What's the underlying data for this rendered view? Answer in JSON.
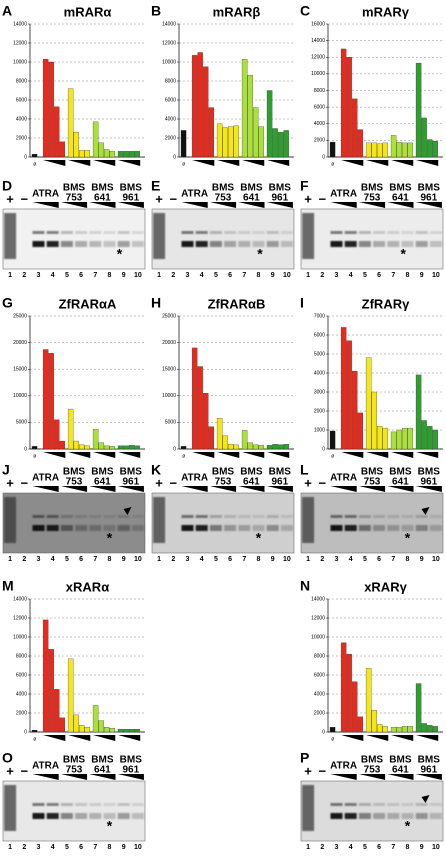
{
  "chart_data": [
    {
      "type": "bar",
      "panel": "A",
      "title": "mRARα",
      "control_label": "ø",
      "ylim": [
        0,
        14000
      ],
      "yticks": [
        0,
        2000,
        4000,
        6000,
        8000,
        10000,
        12000,
        14000
      ],
      "grid": true,
      "values": [
        300,
        10300,
        10000,
        5300,
        1600,
        7200,
        2600,
        700,
        700,
        3700,
        1500,
        800,
        600,
        600,
        600,
        600,
        600
      ],
      "colors": [
        "#111111",
        "#e8291c",
        "#e8291c",
        "#e8291c",
        "#e8291c",
        "#f5e616",
        "#f5e616",
        "#f5e616",
        "#f5e616",
        "#a9e03a",
        "#a9e03a",
        "#a9e03a",
        "#a9e03a",
        "#2e9e2e",
        "#2e9e2e",
        "#2e9e2e",
        "#2e9e2e"
      ]
    },
    {
      "type": "bar",
      "panel": "B",
      "title": "mRARβ",
      "control_label": "ø",
      "ylim": [
        0,
        14000
      ],
      "yticks": [
        0,
        2000,
        4000,
        6000,
        8000,
        10000,
        12000,
        14000
      ],
      "grid": true,
      "values": [
        2800,
        10700,
        11000,
        9500,
        5200,
        3500,
        3100,
        3200,
        3300,
        10300,
        8600,
        5200,
        3200,
        7000,
        3000,
        2600,
        2800
      ],
      "colors": [
        "#111111",
        "#e8291c",
        "#e8291c",
        "#e8291c",
        "#e8291c",
        "#f5e616",
        "#f5e616",
        "#f5e616",
        "#f5e616",
        "#a9e03a",
        "#a9e03a",
        "#a9e03a",
        "#a9e03a",
        "#2e9e2e",
        "#2e9e2e",
        "#2e9e2e",
        "#2e9e2e"
      ]
    },
    {
      "type": "bar",
      "panel": "C",
      "title": "mRARγ",
      "control_label": "ø",
      "ylim": [
        0,
        16000
      ],
      "yticks": [
        0,
        2000,
        4000,
        6000,
        8000,
        10000,
        12000,
        14000,
        16000
      ],
      "grid": true,
      "values": [
        1800,
        13000,
        12000,
        7000,
        3300,
        1700,
        1700,
        1600,
        1700,
        2600,
        1800,
        1700,
        1700,
        11300,
        4700,
        2100,
        1900
      ],
      "colors": [
        "#111111",
        "#e8291c",
        "#e8291c",
        "#e8291c",
        "#e8291c",
        "#f5e616",
        "#f5e616",
        "#f5e616",
        "#f5e616",
        "#a9e03a",
        "#a9e03a",
        "#a9e03a",
        "#a9e03a",
        "#2e9e2e",
        "#2e9e2e",
        "#2e9e2e",
        "#2e9e2e"
      ]
    },
    {
      "type": "bar",
      "panel": "G",
      "title": "ZfRARαA",
      "control_label": "ø",
      "ylim": [
        0,
        25000
      ],
      "yticks": [
        0,
        5000,
        10000,
        15000,
        20000,
        25000
      ],
      "grid": true,
      "values": [
        500,
        18700,
        18000,
        5500,
        1500,
        7500,
        1500,
        800,
        600,
        3700,
        1200,
        600,
        500,
        600,
        600,
        700,
        600
      ],
      "colors": [
        "#111111",
        "#e8291c",
        "#e8291c",
        "#e8291c",
        "#e8291c",
        "#f5e616",
        "#f5e616",
        "#f5e616",
        "#f5e616",
        "#a9e03a",
        "#a9e03a",
        "#a9e03a",
        "#a9e03a",
        "#2e9e2e",
        "#2e9e2e",
        "#2e9e2e",
        "#2e9e2e"
      ]
    },
    {
      "type": "bar",
      "panel": "H",
      "title": "ZfRARαB",
      "control_label": "ø",
      "ylim": [
        0,
        25000
      ],
      "yticks": [
        0,
        5000,
        10000,
        15000,
        20000,
        25000
      ],
      "grid": true,
      "values": [
        500,
        19000,
        15500,
        10500,
        4200,
        5800,
        2500,
        900,
        800,
        3500,
        1200,
        800,
        700,
        700,
        900,
        800,
        900
      ],
      "colors": [
        "#111111",
        "#e8291c",
        "#e8291c",
        "#e8291c",
        "#e8291c",
        "#f5e616",
        "#f5e616",
        "#f5e616",
        "#f5e616",
        "#a9e03a",
        "#a9e03a",
        "#a9e03a",
        "#a9e03a",
        "#2e9e2e",
        "#2e9e2e",
        "#2e9e2e",
        "#2e9e2e"
      ]
    },
    {
      "type": "bar",
      "panel": "I",
      "title": "ZfRARγ",
      "control_label": "ø",
      "ylim": [
        0,
        7000
      ],
      "yticks": [
        0,
        1000,
        2000,
        3000,
        4000,
        5000,
        6000,
        7000
      ],
      "grid": true,
      "values": [
        950,
        6400,
        5700,
        4100,
        1900,
        4800,
        3000,
        1200,
        1100,
        900,
        1000,
        1100,
        1100,
        3900,
        1500,
        1200,
        1000
      ],
      "colors": [
        "#111111",
        "#e8291c",
        "#e8291c",
        "#e8291c",
        "#e8291c",
        "#f5e616",
        "#f5e616",
        "#f5e616",
        "#f5e616",
        "#a9e03a",
        "#a9e03a",
        "#a9e03a",
        "#a9e03a",
        "#2e9e2e",
        "#2e9e2e",
        "#2e9e2e",
        "#2e9e2e"
      ]
    },
    {
      "type": "bar",
      "panel": "M",
      "title": "xRARα",
      "control_label": "ø",
      "ylim": [
        0,
        14000
      ],
      "yticks": [
        0,
        2000,
        4000,
        6000,
        8000,
        10000,
        12000,
        14000
      ],
      "grid": true,
      "values": [
        200,
        11800,
        8700,
        4500,
        1500,
        7700,
        1800,
        700,
        500,
        2800,
        1200,
        500,
        400,
        300,
        300,
        300,
        300
      ],
      "colors": [
        "#111111",
        "#e8291c",
        "#e8291c",
        "#e8291c",
        "#e8291c",
        "#f5e616",
        "#f5e616",
        "#f5e616",
        "#f5e616",
        "#a9e03a",
        "#a9e03a",
        "#a9e03a",
        "#a9e03a",
        "#2e9e2e",
        "#2e9e2e",
        "#2e9e2e",
        "#2e9e2e"
      ]
    },
    {
      "type": "bar",
      "panel": "N",
      "title": "xRARγ",
      "control_label": "ø",
      "ylim": [
        0,
        14000
      ],
      "yticks": [
        0,
        2000,
        4000,
        6000,
        8000,
        10000,
        12000,
        14000
      ],
      "grid": true,
      "values": [
        500,
        9400,
        8200,
        5300,
        1600,
        6700,
        2300,
        800,
        600,
        500,
        500,
        600,
        600,
        5100,
        900,
        700,
        600
      ],
      "colors": [
        "#111111",
        "#e8291c",
        "#e8291c",
        "#e8291c",
        "#e8291c",
        "#f5e616",
        "#f5e616",
        "#f5e616",
        "#f5e616",
        "#a9e03a",
        "#a9e03a",
        "#a9e03a",
        "#a9e03a",
        "#2e9e2e",
        "#2e9e2e",
        "#2e9e2e",
        "#2e9e2e"
      ]
    }
  ],
  "gels": [
    {
      "panel": "D",
      "plus": "+",
      "minus": "−",
      "treatments": [
        [
          "ATRA"
        ],
        [
          "BMS",
          "753"
        ],
        [
          "BMS",
          "641"
        ],
        [
          "BMS",
          "961"
        ]
      ],
      "lanes": [
        1,
        2,
        3,
        4,
        5,
        6,
        7,
        8,
        9,
        10
      ],
      "annotation": "*"
    },
    {
      "panel": "E",
      "plus": "+",
      "minus": "−",
      "treatments": [
        [
          "ATRA"
        ],
        [
          "BMS",
          "753"
        ],
        [
          "BMS",
          "641"
        ],
        [
          "BMS",
          "961"
        ]
      ],
      "lanes": [
        1,
        2,
        3,
        4,
        5,
        6,
        7,
        8,
        9,
        10
      ],
      "annotation": "*"
    },
    {
      "panel": "F",
      "plus": "+",
      "minus": "−",
      "treatments": [
        [
          "ATRA"
        ],
        [
          "BMS",
          "753"
        ],
        [
          "BMS",
          "641"
        ],
        [
          "BMS",
          "961"
        ]
      ],
      "lanes": [
        1,
        2,
        3,
        4,
        5,
        6,
        7,
        8,
        9,
        10
      ],
      "annotation": "*"
    },
    {
      "panel": "J",
      "plus": "+",
      "minus": "−",
      "treatments": [
        [
          "ATRA"
        ],
        [
          "BMS",
          "753"
        ],
        [
          "BMS",
          "641"
        ],
        [
          "BMS",
          "961"
        ]
      ],
      "lanes": [
        1,
        2,
        3,
        4,
        5,
        6,
        7,
        8,
        9,
        10
      ],
      "annotation": "*"
    },
    {
      "panel": "K",
      "plus": "+",
      "minus": "−",
      "treatments": [
        [
          "ATRA"
        ],
        [
          "BMS",
          "753"
        ],
        [
          "BMS",
          "641"
        ],
        [
          "BMS",
          "961"
        ]
      ],
      "lanes": [
        1,
        2,
        3,
        4,
        5,
        6,
        7,
        8,
        9,
        10
      ],
      "annotation": "*"
    },
    {
      "panel": "L",
      "plus": "+",
      "minus": "−",
      "treatments": [
        [
          "ATRA"
        ],
        [
          "BMS",
          "753"
        ],
        [
          "BMS",
          "641"
        ],
        [
          "BMS",
          "961"
        ]
      ],
      "lanes": [
        1,
        2,
        3,
        4,
        5,
        6,
        7,
        8,
        9,
        10
      ],
      "annotation": "*"
    },
    {
      "panel": "O",
      "plus": "+",
      "minus": "−",
      "treatments": [
        [
          "ATRA"
        ],
        [
          "BMS",
          "753"
        ],
        [
          "BMS",
          "641"
        ],
        [
          "BMS",
          "961"
        ]
      ],
      "lanes": [
        1,
        2,
        3,
        4,
        5,
        6,
        7,
        8,
        9,
        10
      ],
      "annotation": "*"
    },
    {
      "panel": "P",
      "plus": "+",
      "minus": "−",
      "treatments": [
        [
          "ATRA"
        ],
        [
          "BMS",
          "753"
        ],
        [
          "BMS",
          "641"
        ],
        [
          "BMS",
          "961"
        ]
      ],
      "lanes": [
        1,
        2,
        3,
        4,
        5,
        6,
        7,
        8,
        9,
        10
      ],
      "annotation": "*"
    }
  ]
}
